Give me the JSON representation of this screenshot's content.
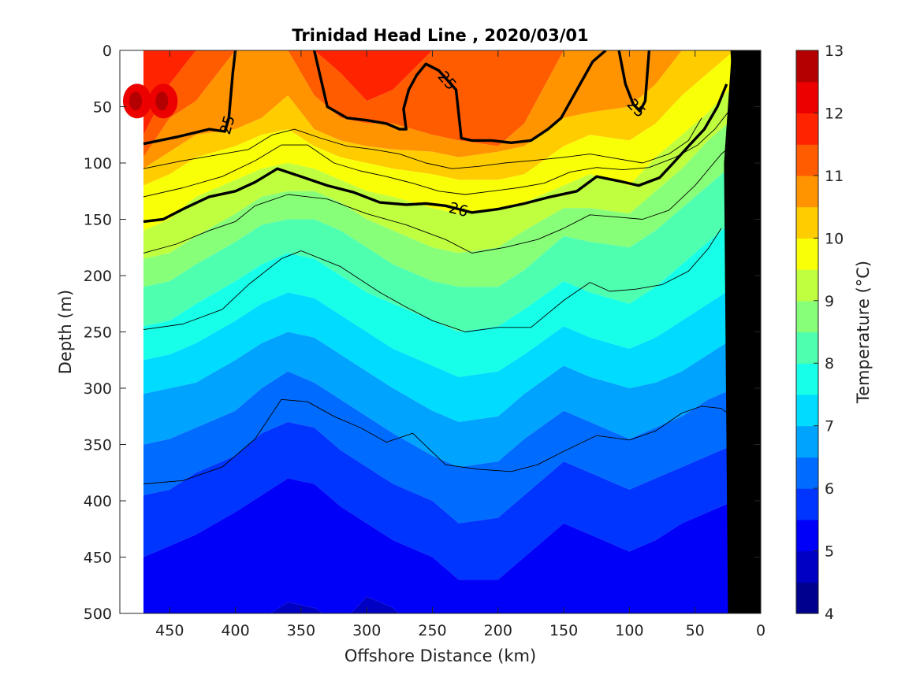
{
  "chart_data": {
    "type": "heatmap",
    "subtype": "filled-contour section",
    "title": "Trinidad Head Line , 2020/03/01",
    "xlabel": "Offshore Distance (km)",
    "ylabel": "Depth (m)",
    "colorbar_label": "Temperature (°C)",
    "xlim": [
      488,
      0
    ],
    "x_reversed": true,
    "ylim": [
      0,
      500
    ],
    "y_reversed": true,
    "x_ticks": [
      450,
      400,
      350,
      300,
      250,
      200,
      150,
      100,
      50,
      0
    ],
    "y_ticks": [
      0,
      50,
      100,
      150,
      200,
      250,
      300,
      350,
      400,
      450,
      500
    ],
    "colorbar": {
      "min": 4,
      "max": 13,
      "step": 0.5,
      "ticks": [
        4,
        5,
        6,
        7,
        8,
        9,
        10,
        11,
        12,
        13
      ],
      "colormap": "jet",
      "colors": [
        "#00008f",
        "#0000c4",
        "#0000f8",
        "#0034ff",
        "#006cff",
        "#00a4ff",
        "#00dcff",
        "#17ffe8",
        "#4fffb0",
        "#87ff78",
        "#c0ff3f",
        "#f8ff07",
        "#ffcc00",
        "#ff9400",
        "#ff5c00",
        "#ff2400",
        "#ec0000",
        "#b40000"
      ]
    },
    "x_stations_km": [
      470,
      450,
      430,
      400,
      380,
      360,
      340,
      320,
      300,
      280,
      250,
      230,
      200,
      180,
      150,
      130,
      100,
      80,
      60,
      40,
      20
    ],
    "temperature_surface": {
      "depth_m": 0,
      "values": [
        11.8,
        11.5,
        10.3,
        9.9,
        10.0,
        10.3,
        10.8,
        11.5,
        11.7,
        11.2,
        11.0,
        11.1,
        11.1,
        11.0,
        10.8,
        10.4,
        10.2,
        10.0,
        9.8,
        9.5,
        9.3
      ]
    },
    "isotherm_depth_m": {
      "levels_degC": [
        11.5,
        11,
        10.5,
        10,
        9.5,
        9,
        8.5,
        8,
        7.5,
        7,
        6.5,
        6,
        5.5,
        5
      ],
      "rows": [
        [
          75,
          30,
          0,
          0,
          0,
          0,
          0,
          20,
          45,
          35,
          0,
          0,
          0,
          0,
          0,
          0,
          0,
          0,
          0,
          0,
          0
        ],
        [
          95,
          60,
          45,
          0,
          0,
          0,
          40,
          60,
          65,
          65,
          75,
          80,
          85,
          65,
          0,
          0,
          0,
          0,
          0,
          0,
          0
        ],
        [
          105,
          90,
          75,
          70,
          60,
          40,
          70,
          80,
          85,
          88,
          90,
          95,
          90,
          85,
          60,
          55,
          50,
          30,
          0,
          0,
          0
        ],
        [
          120,
          110,
          95,
          85,
          75,
          70,
          85,
          95,
          100,
          105,
          110,
          115,
          115,
          110,
          85,
          75,
          80,
          65,
          40,
          20,
          0
        ],
        [
          160,
          150,
          130,
          115,
          105,
          100,
          105,
          115,
          125,
          130,
          140,
          145,
          140,
          135,
          120,
          110,
          120,
          95,
          75,
          55,
          30
        ],
        [
          185,
          180,
          165,
          145,
          130,
          125,
          125,
          135,
          150,
          160,
          175,
          180,
          175,
          160,
          140,
          140,
          145,
          125,
          105,
          80,
          60
        ],
        [
          210,
          205,
          190,
          170,
          155,
          150,
          150,
          160,
          175,
          190,
          205,
          210,
          210,
          195,
          165,
          170,
          175,
          160,
          140,
          120,
          100
        ],
        [
          245,
          240,
          225,
          205,
          190,
          180,
          185,
          200,
          215,
          225,
          240,
          250,
          245,
          230,
          205,
          215,
          225,
          210,
          190,
          170,
          150
        ],
        [
          275,
          270,
          260,
          240,
          225,
          215,
          220,
          235,
          250,
          265,
          280,
          290,
          285,
          270,
          245,
          255,
          265,
          255,
          240,
          225,
          210
        ],
        [
          305,
          300,
          295,
          275,
          260,
          250,
          255,
          270,
          285,
          300,
          320,
          330,
          325,
          305,
          280,
          290,
          300,
          295,
          285,
          270,
          255
        ],
        [
          350,
          345,
          335,
          320,
          300,
          285,
          295,
          310,
          325,
          340,
          360,
          370,
          365,
          345,
          320,
          330,
          345,
          335,
          325,
          310,
          300
        ],
        [
          395,
          390,
          375,
          360,
          340,
          330,
          335,
          355,
          370,
          385,
          400,
          420,
          415,
          395,
          365,
          375,
          390,
          380,
          370,
          360,
          350
        ],
        [
          450,
          440,
          430,
          410,
          395,
          380,
          385,
          405,
          420,
          435,
          450,
          470,
          470,
          450,
          420,
          430,
          445,
          435,
          420,
          410,
          400
        ],
        [
          530,
          530,
          530,
          520,
          505,
          490,
          495,
          510,
          485,
          495,
          530,
          530,
          530,
          530,
          530,
          530,
          530,
          530,
          530,
          530,
          530
        ]
      ]
    },
    "density_contours": [
      {
        "label": "25",
        "weight": "thick",
        "segments": [
          {
            "distance_km": [
              470,
              445,
              420,
              408,
              405,
              402,
              400
            ],
            "depth_m": [
              83,
              77,
              70,
              72,
              60,
              20,
              0
            ]
          },
          {
            "distance_km": [
              340,
              330,
              315,
              300,
              285,
              275,
              270,
              272,
              268,
              262,
              255,
              245,
              232,
              228,
              220,
              205,
              190,
              175,
              162,
              152,
              140,
              128,
              118
            ],
            "depth_m": [
              0,
              50,
              60,
              62,
              65,
              70,
              70,
              52,
              35,
              22,
              12,
              18,
              35,
              78,
              80,
              80,
              82,
              80,
              70,
              60,
              35,
              10,
              0
            ]
          },
          {
            "distance_km": [
              108,
              103,
              97,
              92,
              88,
              85
            ],
            "depth_m": [
              0,
              30,
              48,
              54,
              45,
              0
            ]
          }
        ]
      },
      {
        "label": "26",
        "weight": "thick",
        "segments": [
          {
            "distance_km": [
              470,
              455,
              440,
              420,
              400,
              385,
              368,
              350,
              330,
              310,
              290,
              270,
              255,
              240,
              220,
              200,
              180,
              160,
              140,
              125,
              108,
              93,
              77,
              65,
              55,
              43,
              33,
              26
            ],
            "depth_m": [
              152,
              150,
              141,
              130,
              125,
              117,
              105,
              112,
              120,
              126,
              135,
              137,
              136,
              138,
              144,
              141,
              136,
              130,
              125,
              112,
              116,
              120,
              113,
              98,
              85,
              70,
              50,
              30
            ]
          },
          {
            "distance_km": [
              22,
              20,
              15,
              10
            ],
            "depth_m": [
              0,
              45,
              55,
              65
            ]
          }
        ]
      },
      {
        "weight": "thin",
        "distance_km": [
          470,
          440,
          410,
          390,
          372,
          355,
          335,
          315,
          295,
          275,
          255,
          235,
          215,
          195,
          175,
          150,
          130,
          110,
          90,
          70,
          55,
          45
        ],
        "depth_m": [
          105,
          98,
          92,
          88,
          75,
          70,
          78,
          85,
          88,
          92,
          100,
          105,
          103,
          100,
          98,
          95,
          92,
          96,
          100,
          92,
          80,
          60
        ]
      },
      {
        "weight": "thin",
        "distance_km": [
          470,
          440,
          410,
          385,
          365,
          345,
          325,
          305,
          285,
          265,
          245,
          225,
          205,
          185,
          165,
          145,
          125,
          105,
          85,
          65,
          48,
          35,
          25
        ],
        "depth_m": [
          130,
          122,
          112,
          98,
          84,
          84,
          100,
          107,
          112,
          118,
          125,
          128,
          125,
          122,
          118,
          108,
          104,
          106,
          104,
          95,
          84,
          70,
          55
        ]
      },
      {
        "weight": "thin",
        "distance_km": [
          470,
          445,
          420,
          400,
          385,
          360,
          330,
          300,
          270,
          240,
          220,
          195,
          170,
          150,
          130,
          110,
          90,
          70,
          50,
          30,
          20
        ],
        "depth_m": [
          180,
          172,
          160,
          152,
          138,
          128,
          132,
          145,
          155,
          168,
          180,
          175,
          168,
          158,
          146,
          148,
          150,
          142,
          120,
          92,
          82
        ]
      },
      {
        "weight": "thin",
        "distance_km": [
          470,
          440,
          410,
          390,
          365,
          350,
          320,
          290,
          270,
          250,
          225,
          200,
          175,
          150,
          130,
          115,
          95,
          75,
          55,
          40,
          30
        ],
        "depth_m": [
          248,
          243,
          230,
          208,
          185,
          178,
          192,
          215,
          228,
          240,
          250,
          246,
          246,
          222,
          206,
          214,
          212,
          208,
          196,
          176,
          158
        ]
      },
      {
        "weight": "thin",
        "distance_km": [
          470,
          440,
          410,
          385,
          365,
          345,
          325,
          305,
          285,
          265,
          240,
          215,
          190,
          170,
          150,
          125,
          100,
          80,
          60,
          45,
          30,
          22
        ],
        "depth_m": [
          385,
          382,
          370,
          345,
          310,
          312,
          325,
          335,
          348,
          340,
          368,
          372,
          374,
          368,
          356,
          342,
          346,
          338,
          322,
          316,
          318,
          325
        ]
      }
    ],
    "land_polygon_distance_km": [
      0,
      0,
      25,
      28,
      22
    ],
    "land_polygon_depth_m": [
      0,
      500,
      500,
      100,
      0
    ]
  }
}
